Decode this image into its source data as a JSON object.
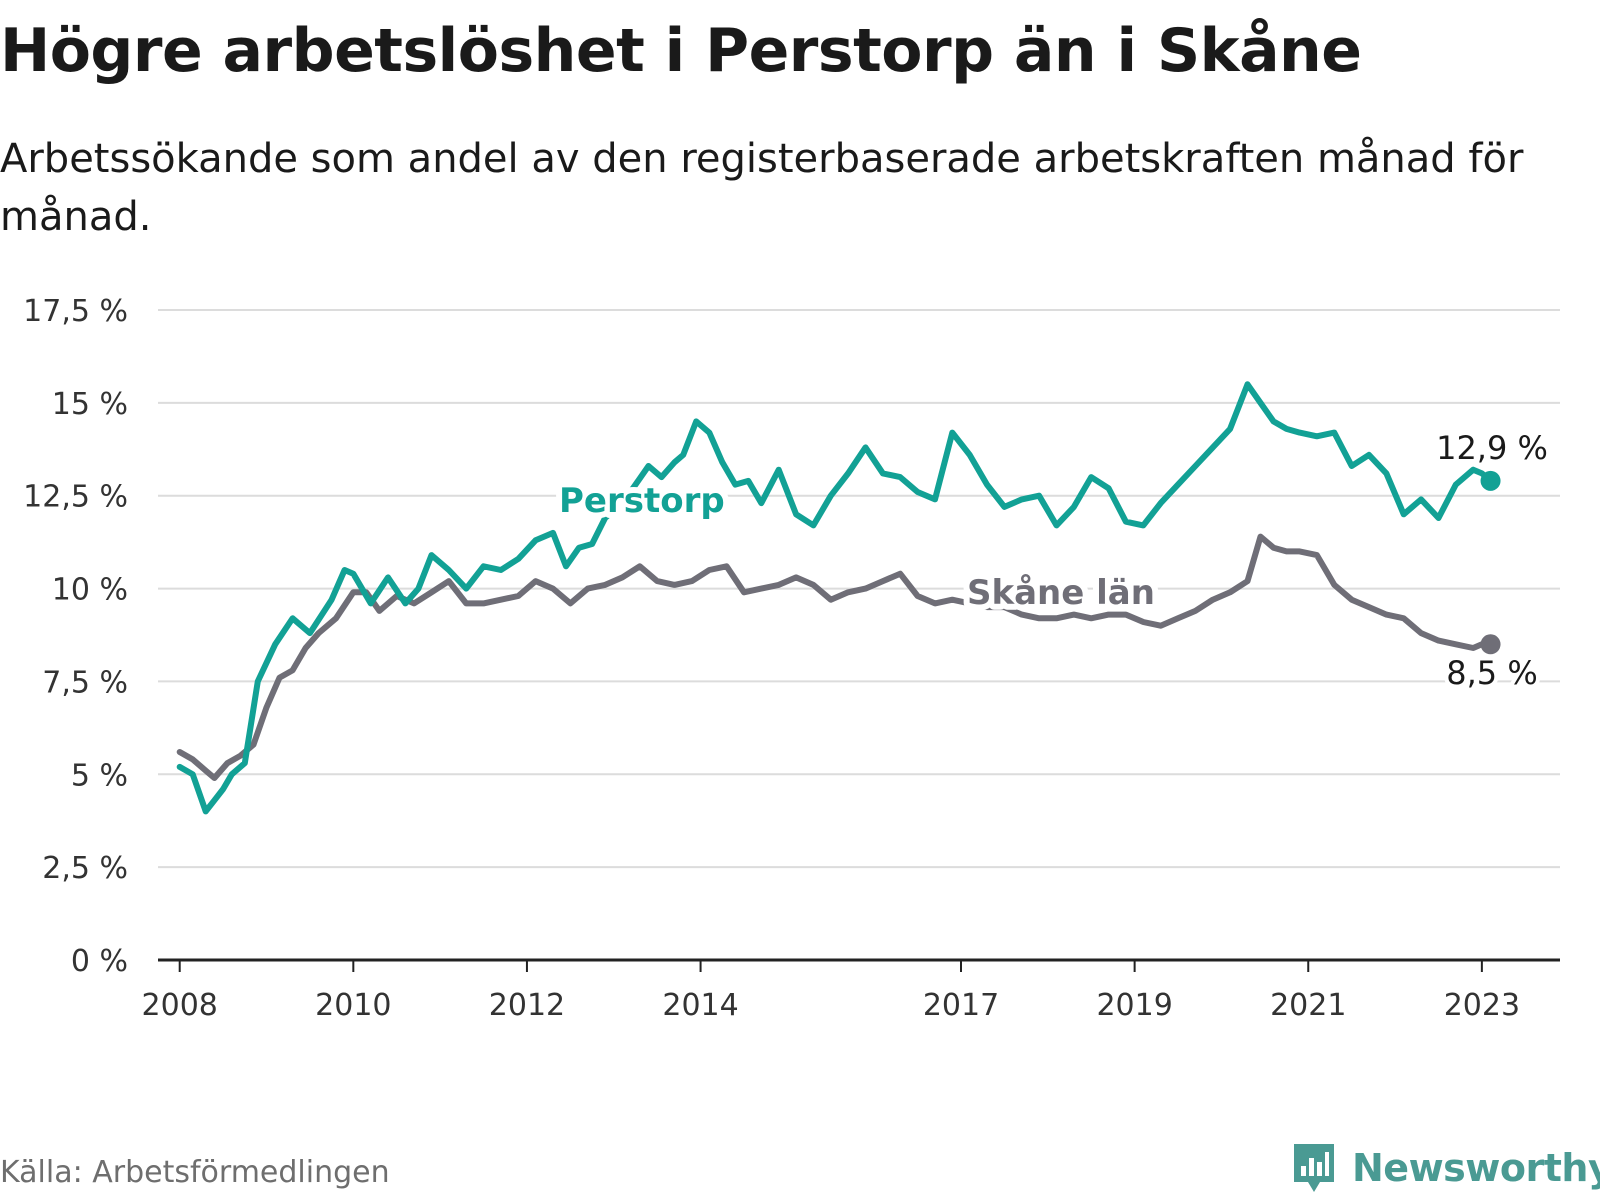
{
  "title": "Högre arbetslöshet i Perstorp än i Skåne",
  "subtitle": "Arbetssökande som andel av den registerbaserade arbetskraften månad för månad.",
  "source": "Källa: Arbetsförmedlingen",
  "brand": "Newsworthy",
  "colors": {
    "perstorp": "#12a195",
    "skane": "#6f6e77",
    "grid": "#dcdcdc",
    "axis": "#222222",
    "brand": "#4a9a93"
  },
  "chart_data": {
    "type": "line",
    "title": "Högre arbetslöshet i Perstorp än i Skåne",
    "ylim": [
      0,
      17.5
    ],
    "yticks": [
      0,
      2.5,
      5,
      7.5,
      10,
      12.5,
      15,
      17.5
    ],
    "ytick_labels": [
      "0 %",
      "2,5 %",
      "5 %",
      "7,5 %",
      "10 %",
      "12,5 %",
      "15 %",
      "17,5 %"
    ],
    "xlim": [
      2007.75,
      2023.9
    ],
    "xticks": [
      2008,
      2010,
      2012,
      2014,
      2017,
      2019,
      2021,
      2023
    ],
    "xtick_labels": [
      "2008",
      "2010",
      "2012",
      "2014",
      "2017",
      "2019",
      "2021",
      "2023"
    ],
    "series": [
      {
        "name": "Perstorp",
        "label": "Perstorp",
        "end_label": "12,9 %",
        "x": [
          2008.0,
          2008.15,
          2008.3,
          2008.4,
          2008.5,
          2008.6,
          2008.75,
          2008.9,
          2009.1,
          2009.3,
          2009.5,
          2009.75,
          2009.9,
          2010.0,
          2010.2,
          2010.4,
          2010.6,
          2010.75,
          2010.9,
          2011.1,
          2011.3,
          2011.5,
          2011.7,
          2011.9,
          2012.1,
          2012.3,
          2012.45,
          2012.6,
          2012.75,
          2012.9,
          2013.1,
          2013.25,
          2013.4,
          2013.55,
          2013.7,
          2013.8,
          2013.95,
          2014.1,
          2014.25,
          2014.4,
          2014.55,
          2014.7,
          2014.9,
          2015.1,
          2015.3,
          2015.5,
          2015.7,
          2015.9,
          2016.1,
          2016.3,
          2016.5,
          2016.7,
          2016.9,
          2017.1,
          2017.3,
          2017.5,
          2017.7,
          2017.9,
          2018.1,
          2018.3,
          2018.5,
          2018.7,
          2018.9,
          2019.1,
          2019.3,
          2019.5,
          2019.7,
          2019.9,
          2020.1,
          2020.3,
          2020.45,
          2020.6,
          2020.75,
          2020.9,
          2021.1,
          2021.3,
          2021.5,
          2021.7,
          2021.9,
          2022.1,
          2022.3,
          2022.5,
          2022.7,
          2022.9,
          2023.0,
          2023.1
        ],
        "values": [
          5.2,
          5.0,
          4.0,
          4.3,
          4.6,
          5.0,
          5.3,
          7.5,
          8.5,
          9.2,
          8.8,
          9.7,
          10.5,
          10.4,
          9.6,
          10.3,
          9.6,
          10.0,
          10.9,
          10.5,
          10.0,
          10.6,
          10.5,
          10.8,
          11.3,
          11.5,
          10.6,
          11.1,
          11.2,
          11.9,
          12.3,
          12.8,
          13.3,
          13.0,
          13.4,
          13.6,
          14.5,
          14.2,
          13.4,
          12.8,
          12.9,
          12.3,
          13.2,
          12.0,
          11.7,
          12.5,
          13.1,
          13.8,
          13.1,
          13.0,
          12.6,
          12.4,
          14.2,
          13.6,
          12.8,
          12.2,
          12.4,
          12.5,
          11.7,
          12.2,
          13.0,
          12.7,
          11.8,
          11.7,
          12.3,
          12.8,
          13.3,
          13.8,
          14.3,
          15.5,
          15.0,
          14.5,
          14.3,
          14.2,
          14.1,
          14.2,
          13.3,
          13.6,
          13.1,
          12.0,
          12.4,
          11.9,
          12.8,
          13.2,
          13.1,
          12.9
        ]
      },
      {
        "name": "Skåne län",
        "label": "Skåne län",
        "end_label": "8,5 %",
        "x": [
          2008.0,
          2008.15,
          2008.3,
          2008.4,
          2008.55,
          2008.7,
          2008.85,
          2009.0,
          2009.15,
          2009.3,
          2009.45,
          2009.6,
          2009.8,
          2010.0,
          2010.15,
          2010.3,
          2010.5,
          2010.7,
          2010.9,
          2011.1,
          2011.3,
          2011.5,
          2011.7,
          2011.9,
          2012.1,
          2012.3,
          2012.5,
          2012.7,
          2012.9,
          2013.1,
          2013.3,
          2013.5,
          2013.7,
          2013.9,
          2014.1,
          2014.3,
          2014.5,
          2014.7,
          2014.9,
          2015.1,
          2015.3,
          2015.5,
          2015.7,
          2015.9,
          2016.1,
          2016.3,
          2016.5,
          2016.7,
          2016.9,
          2017.1,
          2017.3,
          2017.5,
          2017.7,
          2017.9,
          2018.1,
          2018.3,
          2018.5,
          2018.7,
          2018.9,
          2019.1,
          2019.3,
          2019.5,
          2019.7,
          2019.9,
          2020.1,
          2020.3,
          2020.45,
          2020.6,
          2020.75,
          2020.9,
          2021.1,
          2021.3,
          2021.5,
          2021.7,
          2021.9,
          2022.1,
          2022.3,
          2022.5,
          2022.7,
          2022.9,
          2023.0,
          2023.1
        ],
        "values": [
          5.6,
          5.4,
          5.1,
          4.9,
          5.3,
          5.5,
          5.8,
          6.8,
          7.6,
          7.8,
          8.4,
          8.8,
          9.2,
          9.9,
          9.9,
          9.4,
          9.8,
          9.6,
          9.9,
          10.2,
          9.6,
          9.6,
          9.7,
          9.8,
          10.2,
          10.0,
          9.6,
          10.0,
          10.1,
          10.3,
          10.6,
          10.2,
          10.1,
          10.2,
          10.5,
          10.6,
          9.9,
          10.0,
          10.1,
          10.3,
          10.1,
          9.7,
          9.9,
          10.0,
          10.2,
          10.4,
          9.8,
          9.6,
          9.7,
          9.6,
          9.5,
          9.5,
          9.3,
          9.2,
          9.2,
          9.3,
          9.2,
          9.3,
          9.3,
          9.1,
          9.0,
          9.2,
          9.4,
          9.7,
          9.9,
          10.2,
          11.4,
          11.1,
          11.0,
          11.0,
          10.9,
          10.1,
          9.7,
          9.5,
          9.3,
          9.2,
          8.8,
          8.6,
          8.5,
          8.4,
          8.5,
          8.5
        ]
      }
    ]
  }
}
